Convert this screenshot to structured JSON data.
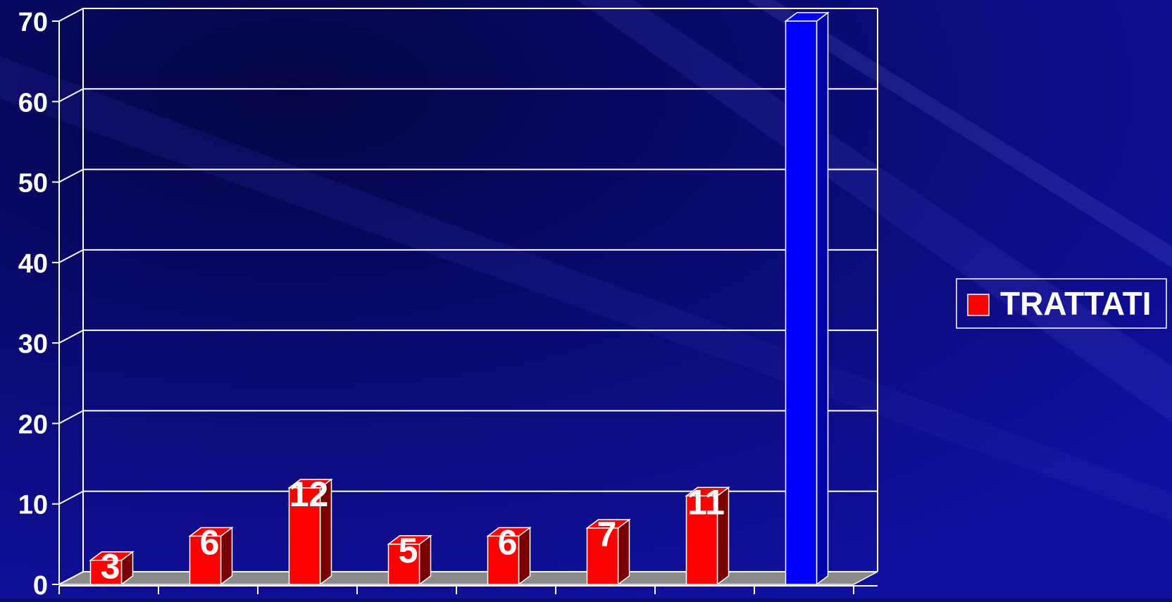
{
  "chart_data": {
    "type": "bar",
    "categories": [
      "",
      "",
      "",
      "",
      "",
      "",
      "",
      ""
    ],
    "ylim": [
      0,
      70
    ],
    "yticks": [
      0,
      10,
      20,
      30,
      40,
      50,
      60,
      70
    ],
    "grid": true,
    "legend_position": "right",
    "series": [
      {
        "name": "TRATTATI",
        "color": "#ff0000",
        "values": [
          3,
          6,
          12,
          5,
          6,
          7,
          11,
          null
        ],
        "data_labels": [
          "3",
          "6",
          "12",
          "5",
          "6",
          "7",
          "11",
          ""
        ]
      },
      {
        "name": "",
        "color": "#0000ff",
        "values": [
          null,
          null,
          null,
          null,
          null,
          null,
          null,
          70
        ],
        "data_labels": [
          "",
          "",
          "",
          "",
          "",
          "",
          "",
          ""
        ]
      }
    ]
  },
  "legend": {
    "items": [
      {
        "label": "TRATTATI",
        "color": "#ff0000"
      }
    ]
  },
  "colors": {
    "background": "#0a0a6e",
    "grid": "#ffffff",
    "text": "#ffffff",
    "red_side": "#7a0000",
    "blue_side": "#0000a8",
    "floor": "#8a8a8a"
  }
}
